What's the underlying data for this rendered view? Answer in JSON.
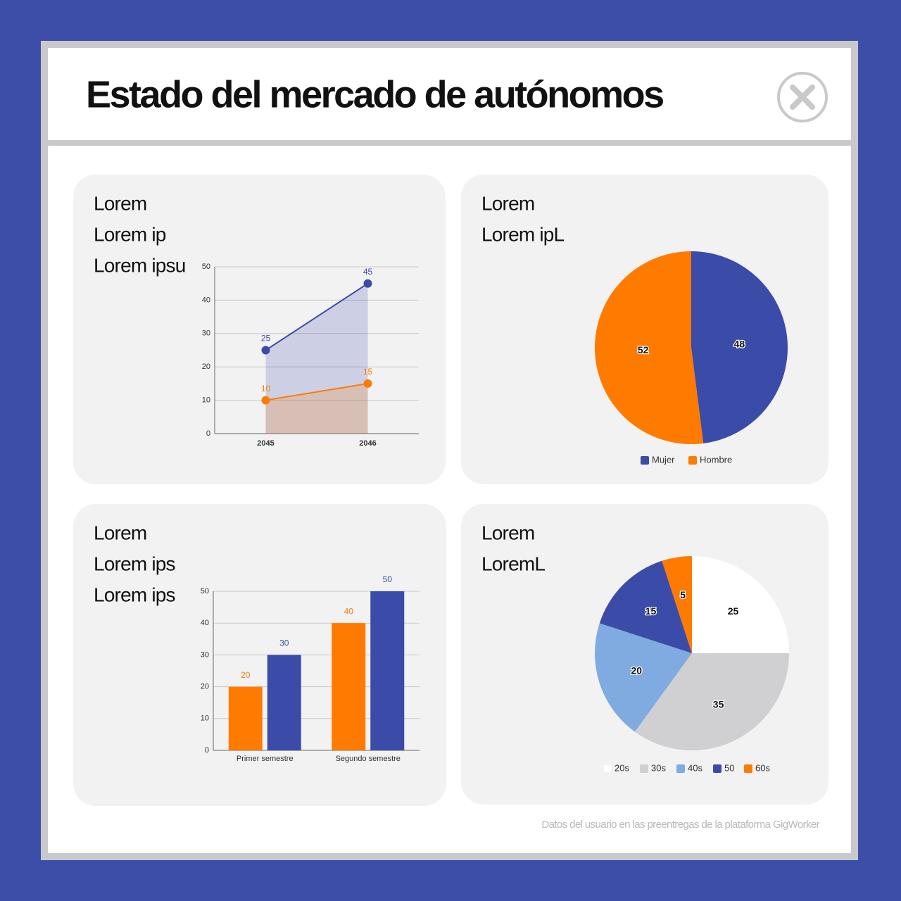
{
  "header": {
    "title": "Estado del mercado de autónomos"
  },
  "footer": "Datos del usuario en las preentregas de la plataforma GigWorker",
  "chart_data": [
    {
      "type": "line",
      "area": true,
      "title": [
        "Lorem",
        "Lorem ip",
        "Lorem ipsu"
      ],
      "categories": [
        "2045",
        "2046"
      ],
      "series": [
        {
          "color": "#3b4ba8",
          "values": [
            25,
            45
          ]
        },
        {
          "color": "#ff7b00",
          "values": [
            10,
            15
          ]
        }
      ],
      "ylim": [
        0,
        50
      ],
      "yticks": [
        0,
        10,
        20,
        30,
        40,
        50
      ],
      "grid": true
    },
    {
      "type": "pie",
      "title": [
        "Lorem",
        "Lorem ipL"
      ],
      "categories": [
        "Mujer",
        "Hombre"
      ],
      "values": [
        48,
        52
      ],
      "colors": [
        "#3b4ba8",
        "#ff7b00"
      ]
    },
    {
      "type": "bar",
      "title": [
        "Lorem",
        "Lorem ips",
        "Lorem ips"
      ],
      "categories": [
        "Primer semestre",
        "Segundo semestre"
      ],
      "series": [
        {
          "color": "#ff7b00",
          "values": [
            20,
            40
          ]
        },
        {
          "color": "#3b4ba8",
          "values": [
            30,
            50
          ]
        }
      ],
      "ylim": [
        0,
        50
      ],
      "yticks": [
        0,
        10,
        20,
        30,
        40,
        50
      ],
      "grid": true
    },
    {
      "type": "pie",
      "title": [
        "Lorem",
        "LoremL"
      ],
      "categories": [
        "20s",
        "30s",
        "40s",
        "50",
        "60s"
      ],
      "values": [
        25,
        35,
        20,
        15,
        5
      ],
      "colors": [
        "#ffffff",
        "#d0cfd1",
        "#7fabe0",
        "#3b4ba8",
        "#ff7b00"
      ]
    }
  ]
}
